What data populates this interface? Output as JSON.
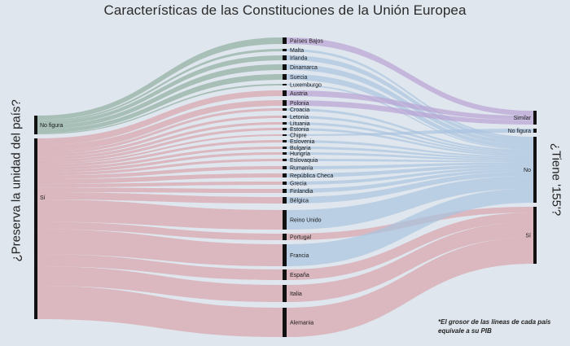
{
  "title": "Características de las Constituciones de la Unión Europea",
  "left_axis_label": "¿Preserva la unidad del país?",
  "right_axis_label": "¿Tiene '155'?",
  "footnote": "*El grosor de las líneas de cada país equivale a su PIB",
  "colors": {
    "background": "#dfe6ed",
    "no_figura_flow": "#8fae9e",
    "si_flow": "#d9a3ab",
    "similar_flow": "#b9a2d4",
    "no_flow": "#a9c3e0",
    "si_right_flow": "#d9a3ab",
    "node": "#111111"
  },
  "chart_data": {
    "type": "sankey",
    "left_nodes": [
      "No figura",
      "Sí"
    ],
    "right_nodes": [
      "Similar",
      "No figura",
      "No",
      "Sí"
    ],
    "countries": [
      {
        "name": "Países Bajos",
        "left": "No figura",
        "right": "Similar"
      },
      {
        "name": "Malta",
        "left": "No figura",
        "right": "No"
      },
      {
        "name": "Irlanda",
        "left": "No figura",
        "right": "No"
      },
      {
        "name": "Dinamarca",
        "left": "No figura",
        "right": "No"
      },
      {
        "name": "Suecia",
        "left": "No figura",
        "right": "No"
      },
      {
        "name": "Luxemburgo",
        "left": "No figura",
        "right": "No"
      },
      {
        "name": "Austria",
        "left": "Sí",
        "right": "Similar"
      },
      {
        "name": "Polonia",
        "left": "Sí",
        "right": "Similar"
      },
      {
        "name": "Croacia",
        "left": "Sí",
        "right": "No"
      },
      {
        "name": "Letonia",
        "left": "Sí",
        "right": "No"
      },
      {
        "name": "Lituania",
        "left": "Sí",
        "right": "No"
      },
      {
        "name": "Estonia",
        "left": "Sí",
        "right": "No"
      },
      {
        "name": "Chipre",
        "left": "Sí",
        "right": "No figura"
      },
      {
        "name": "Eslovenia",
        "left": "Sí",
        "right": "No"
      },
      {
        "name": "Bulgaria",
        "left": "Sí",
        "right": "No"
      },
      {
        "name": "Hungría",
        "left": "Sí",
        "right": "No"
      },
      {
        "name": "Eslovaquia",
        "left": "Sí",
        "right": "No"
      },
      {
        "name": "Rumanía",
        "left": "Sí",
        "right": "No"
      },
      {
        "name": "República Checa",
        "left": "Sí",
        "right": "No"
      },
      {
        "name": "Grecia",
        "left": "Sí",
        "right": "No"
      },
      {
        "name": "Finlandia",
        "left": "Sí",
        "right": "No"
      },
      {
        "name": "Bélgica",
        "left": "Sí",
        "right": "No"
      },
      {
        "name": "Reino Unido",
        "left": "Sí",
        "right": "No"
      },
      {
        "name": "Portugal",
        "left": "Sí",
        "right": "Sí"
      },
      {
        "name": "Francia",
        "left": "Sí",
        "right": "No"
      },
      {
        "name": "España",
        "left": "Sí",
        "right": "Sí"
      },
      {
        "name": "Italia",
        "left": "Sí",
        "right": "Sí"
      },
      {
        "name": "Alemania",
        "left": "Sí",
        "right": "Sí"
      }
    ]
  }
}
